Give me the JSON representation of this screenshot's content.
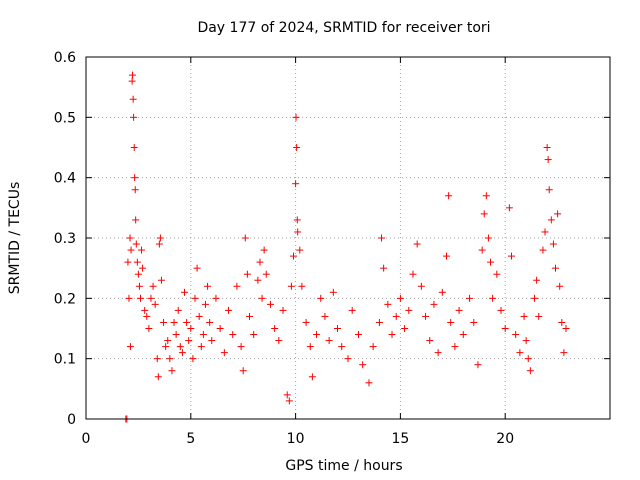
{
  "chart_data": {
    "type": "scatter",
    "title": "Day 177 of 2024, SRMTID for receiver tori",
    "xlabel": "GPS time / hours",
    "ylabel": "SRMTID / TECUs",
    "xlim": [
      0,
      25
    ],
    "ylim": [
      0,
      0.6
    ],
    "xticks": [
      0,
      5,
      10,
      15,
      20
    ],
    "yticks": [
      0,
      0.1,
      0.2,
      0.3,
      0.4,
      0.5,
      0.6
    ],
    "xtick_labels": [
      "0",
      "5",
      "10",
      "15",
      "20"
    ],
    "ytick_labels": [
      "0",
      "0.1",
      "0.2",
      "0.3",
      "0.4",
      "0.5",
      "0.6"
    ],
    "grid": true,
    "marker": "+",
    "color": "#ff0000",
    "series": [
      {
        "name": "SRMTID",
        "points": [
          [
            1.9,
            0.0
          ],
          [
            1.95,
            0.0
          ],
          [
            2.0,
            0.26
          ],
          [
            2.05,
            0.2
          ],
          [
            2.1,
            0.3
          ],
          [
            2.12,
            0.12
          ],
          [
            2.15,
            0.28
          ],
          [
            2.2,
            0.56
          ],
          [
            2.22,
            0.57
          ],
          [
            2.25,
            0.53
          ],
          [
            2.27,
            0.5
          ],
          [
            2.3,
            0.45
          ],
          [
            2.32,
            0.4
          ],
          [
            2.35,
            0.38
          ],
          [
            2.37,
            0.33
          ],
          [
            2.4,
            0.29
          ],
          [
            2.45,
            0.26
          ],
          [
            2.5,
            0.24
          ],
          [
            2.55,
            0.22
          ],
          [
            2.6,
            0.2
          ],
          [
            2.65,
            0.28
          ],
          [
            2.7,
            0.25
          ],
          [
            2.8,
            0.18
          ],
          [
            2.9,
            0.17
          ],
          [
            3.0,
            0.15
          ],
          [
            3.1,
            0.2
          ],
          [
            3.2,
            0.22
          ],
          [
            3.3,
            0.19
          ],
          [
            3.4,
            0.1
          ],
          [
            3.45,
            0.07
          ],
          [
            3.5,
            0.29
          ],
          [
            3.55,
            0.3
          ],
          [
            3.6,
            0.23
          ],
          [
            3.7,
            0.16
          ],
          [
            3.8,
            0.12
          ],
          [
            3.9,
            0.13
          ],
          [
            4.0,
            0.1
          ],
          [
            4.1,
            0.08
          ],
          [
            4.2,
            0.16
          ],
          [
            4.3,
            0.14
          ],
          [
            4.4,
            0.18
          ],
          [
            4.5,
            0.12
          ],
          [
            4.6,
            0.11
          ],
          [
            4.7,
            0.21
          ],
          [
            4.8,
            0.16
          ],
          [
            4.9,
            0.13
          ],
          [
            5.0,
            0.15
          ],
          [
            5.1,
            0.1
          ],
          [
            5.2,
            0.2
          ],
          [
            5.3,
            0.25
          ],
          [
            5.4,
            0.17
          ],
          [
            5.5,
            0.12
          ],
          [
            5.6,
            0.14
          ],
          [
            5.7,
            0.19
          ],
          [
            5.8,
            0.22
          ],
          [
            5.9,
            0.16
          ],
          [
            6.0,
            0.13
          ],
          [
            6.2,
            0.2
          ],
          [
            6.4,
            0.15
          ],
          [
            6.6,
            0.11
          ],
          [
            6.8,
            0.18
          ],
          [
            7.0,
            0.14
          ],
          [
            7.2,
            0.22
          ],
          [
            7.4,
            0.12
          ],
          [
            7.5,
            0.08
          ],
          [
            7.6,
            0.3
          ],
          [
            7.7,
            0.24
          ],
          [
            7.8,
            0.17
          ],
          [
            8.0,
            0.14
          ],
          [
            8.2,
            0.23
          ],
          [
            8.3,
            0.26
          ],
          [
            8.4,
            0.2
          ],
          [
            8.5,
            0.28
          ],
          [
            8.6,
            0.24
          ],
          [
            8.8,
            0.19
          ],
          [
            9.0,
            0.15
          ],
          [
            9.2,
            0.13
          ],
          [
            9.4,
            0.18
          ],
          [
            9.6,
            0.04
          ],
          [
            9.7,
            0.03
          ],
          [
            9.8,
            0.22
          ],
          [
            9.9,
            0.27
          ],
          [
            10.0,
            0.39
          ],
          [
            10.02,
            0.5
          ],
          [
            10.05,
            0.45
          ],
          [
            10.08,
            0.33
          ],
          [
            10.1,
            0.31
          ],
          [
            10.2,
            0.28
          ],
          [
            10.3,
            0.22
          ],
          [
            10.5,
            0.16
          ],
          [
            10.7,
            0.12
          ],
          [
            10.8,
            0.07
          ],
          [
            11.0,
            0.14
          ],
          [
            11.2,
            0.2
          ],
          [
            11.4,
            0.17
          ],
          [
            11.6,
            0.13
          ],
          [
            11.8,
            0.21
          ],
          [
            12.0,
            0.15
          ],
          [
            12.2,
            0.12
          ],
          [
            12.5,
            0.1
          ],
          [
            12.7,
            0.18
          ],
          [
            13.0,
            0.14
          ],
          [
            13.2,
            0.09
          ],
          [
            13.5,
            0.06
          ],
          [
            13.7,
            0.12
          ],
          [
            14.0,
            0.16
          ],
          [
            14.1,
            0.3
          ],
          [
            14.2,
            0.25
          ],
          [
            14.4,
            0.19
          ],
          [
            14.6,
            0.14
          ],
          [
            14.8,
            0.17
          ],
          [
            15.0,
            0.2
          ],
          [
            15.2,
            0.15
          ],
          [
            15.4,
            0.18
          ],
          [
            15.6,
            0.24
          ],
          [
            15.8,
            0.29
          ],
          [
            16.0,
            0.22
          ],
          [
            16.2,
            0.17
          ],
          [
            16.4,
            0.13
          ],
          [
            16.6,
            0.19
          ],
          [
            16.8,
            0.11
          ],
          [
            17.0,
            0.21
          ],
          [
            17.2,
            0.27
          ],
          [
            17.3,
            0.37
          ],
          [
            17.4,
            0.16
          ],
          [
            17.6,
            0.12
          ],
          [
            17.8,
            0.18
          ],
          [
            18.0,
            0.14
          ],
          [
            18.3,
            0.2
          ],
          [
            18.5,
            0.16
          ],
          [
            18.7,
            0.09
          ],
          [
            18.9,
            0.28
          ],
          [
            19.0,
            0.34
          ],
          [
            19.1,
            0.37
          ],
          [
            19.2,
            0.3
          ],
          [
            19.3,
            0.26
          ],
          [
            19.4,
            0.2
          ],
          [
            19.6,
            0.24
          ],
          [
            19.8,
            0.18
          ],
          [
            20.0,
            0.15
          ],
          [
            20.2,
            0.35
          ],
          [
            20.3,
            0.27
          ],
          [
            20.5,
            0.14
          ],
          [
            20.7,
            0.11
          ],
          [
            20.9,
            0.17
          ],
          [
            21.0,
            0.13
          ],
          [
            21.1,
            0.1
          ],
          [
            21.2,
            0.08
          ],
          [
            21.4,
            0.2
          ],
          [
            21.5,
            0.23
          ],
          [
            21.6,
            0.17
          ],
          [
            21.8,
            0.28
          ],
          [
            21.9,
            0.31
          ],
          [
            22.0,
            0.45
          ],
          [
            22.05,
            0.43
          ],
          [
            22.1,
            0.38
          ],
          [
            22.2,
            0.33
          ],
          [
            22.3,
            0.29
          ],
          [
            22.4,
            0.25
          ],
          [
            22.5,
            0.34
          ],
          [
            22.6,
            0.22
          ],
          [
            22.7,
            0.16
          ],
          [
            22.8,
            0.11
          ],
          [
            22.9,
            0.15
          ]
        ]
      }
    ]
  }
}
